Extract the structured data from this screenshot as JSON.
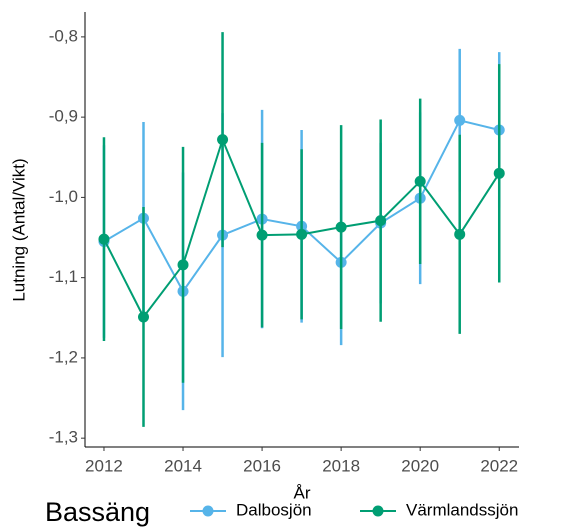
{
  "chart_data": {
    "type": "line",
    "x_label": "År",
    "y_label": "Lutning (Antal/Vikt)",
    "legend_title": "Bassäng",
    "legend": "bottom",
    "grid": false,
    "x": [
      2012,
      2013,
      2014,
      2015,
      2016,
      2017,
      2018,
      2019,
      2020,
      2021,
      2022
    ],
    "series": [
      {
        "name": "Dalbosjön",
        "color": "#56b4e9",
        "values": [
          -1.055,
          -1.026,
          -1.117,
          -1.047,
          -1.027,
          -1.036,
          -1.081,
          -1.032,
          -1.001,
          -0.904,
          -0.916
        ],
        "errors": [
          0.12,
          0.12,
          0.148,
          0.152,
          0.136,
          0.12,
          0.103,
          0.1,
          0.107,
          0.089,
          0.097
        ]
      },
      {
        "name": "Värmlandssjön",
        "color": "#009e73",
        "values": [
          -1.052,
          -1.149,
          -1.084,
          -0.928,
          -1.047,
          -1.046,
          -1.037,
          -1.029,
          -0.98,
          -1.046,
          -0.97
        ],
        "errors": [
          0.127,
          0.137,
          0.147,
          0.134,
          0.115,
          0.106,
          0.127,
          0.126,
          0.103,
          0.124,
          0.136
        ]
      }
    ],
    "xlim": [
      2011.52,
      2022.5
    ],
    "xticks": [
      2012,
      2014,
      2016,
      2018,
      2020,
      2022
    ],
    "ylim": [
      -1.311,
      -0.769
    ],
    "yticks": [
      {
        "value": -1.3,
        "label": "-1,3"
      },
      {
        "value": -1.2,
        "label": "-1,2"
      },
      {
        "value": -1.1,
        "label": "-1,1"
      },
      {
        "value": -1.0,
        "label": "-1,0"
      },
      {
        "value": -0.9,
        "label": "-0,9"
      },
      {
        "value": -0.8,
        "label": "-0,8"
      }
    ]
  }
}
